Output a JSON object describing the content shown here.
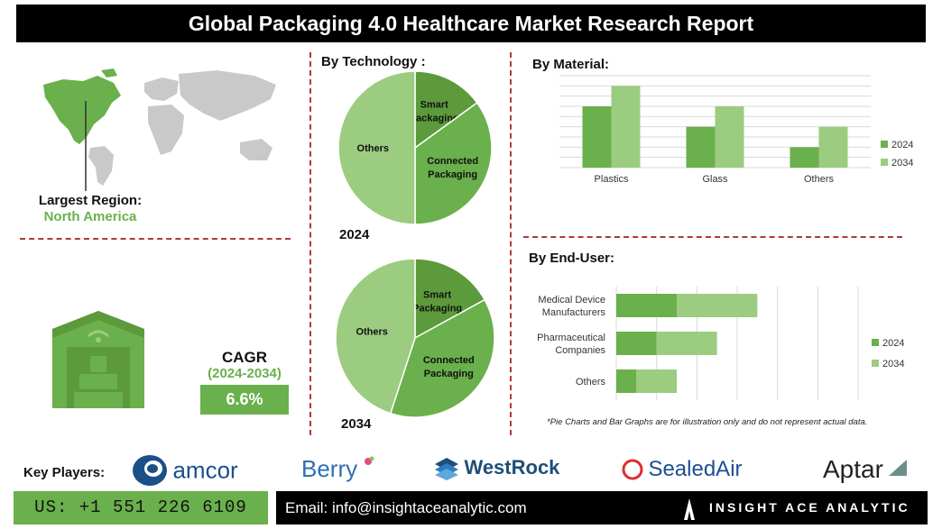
{
  "title": "Global Packaging 4.0 Healthcare Market Research Report",
  "region": {
    "label": "Largest Region:",
    "value": "North America"
  },
  "cagr": {
    "label": "CAGR",
    "period": "(2024-2034)",
    "value": "6.6%"
  },
  "technology": {
    "title": "By Technology :",
    "year_a": "2024",
    "year_b": "2034"
  },
  "material": {
    "title": "By Material:"
  },
  "enduser": {
    "title": "By End-User:"
  },
  "note": "*Pie Charts and Bar Graphs are for illustration only and do not represent actual data.",
  "key_players": {
    "label": "Key Players:",
    "logos": [
      "amcor",
      "Berry",
      "WestRock",
      "SealedAir",
      "Aptar"
    ]
  },
  "contact": {
    "phone": "US: +1 551 226 6109",
    "email": "Email: info@insightaceanalytic.com",
    "brand": "INSIGHT ACE ANALYTIC"
  },
  "colors": {
    "dark_green": "#5c9a3c",
    "mid_green": "#6ab04c",
    "light_green": "#9ccc80",
    "title_bg": "#000000",
    "divider": "#b03a3a"
  },
  "chart_data": [
    {
      "type": "pie",
      "year": "2024",
      "labels": [
        "Smart Packaging",
        "Connected Packaging",
        "Others"
      ],
      "values": [
        15,
        35,
        50
      ]
    },
    {
      "type": "pie",
      "year": "2034",
      "labels": [
        "Smart Packaging",
        "Connected Packaging",
        "Others"
      ],
      "values": [
        17,
        38,
        45
      ]
    },
    {
      "type": "bar",
      "categories": [
        "Plastics",
        "Glass",
        "Others"
      ],
      "series": [
        {
          "name": "2024",
          "values": [
            6,
            4,
            2
          ]
        },
        {
          "name": "2034",
          "values": [
            8,
            6,
            4
          ]
        }
      ],
      "ylim": [
        0,
        9
      ],
      "grid": true,
      "legend": "right"
    },
    {
      "type": "bar",
      "orientation": "horizontal-stacked",
      "categories": [
        "Medical Device Manufacturers",
        "Pharmaceutical Companies",
        "Others"
      ],
      "category_lines": [
        [
          "Medical Device",
          "Manufacturers"
        ],
        [
          "Pharmaceutical",
          "Companies"
        ],
        [
          "Others"
        ]
      ],
      "series": [
        {
          "name": "2024",
          "values": [
            3,
            2,
            1
          ]
        },
        {
          "name": "2034",
          "values": [
            4,
            3,
            2
          ]
        }
      ],
      "xlim": [
        0,
        12
      ],
      "grid": true,
      "legend": "right"
    }
  ]
}
